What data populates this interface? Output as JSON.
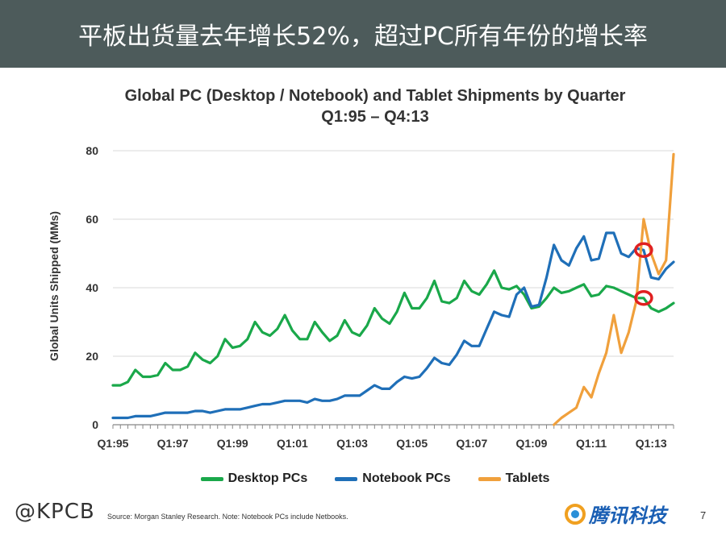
{
  "header": {
    "title": "平板出货量去年增长52%，超过PC所有年份的增长率"
  },
  "chart_data": {
    "type": "line",
    "title": "Global PC (Desktop / Notebook) and Tablet Shipments by Quarter",
    "subtitle": "Q1:95 – Q4:13",
    "ylabel": "Global Units Shipped (MMs)",
    "xlabel": "",
    "ylim": [
      0,
      80
    ],
    "yticks": [
      0,
      20,
      40,
      60,
      80
    ],
    "xlim": [
      1995.0,
      2013.75
    ],
    "xticks": [
      {
        "label": "Q1:95",
        "value": 1995.0
      },
      {
        "label": "Q1:97",
        "value": 1997.0
      },
      {
        "label": "Q1:99",
        "value": 1999.0
      },
      {
        "label": "Q1:01",
        "value": 2001.0
      },
      {
        "label": "Q1:03",
        "value": 2003.0
      },
      {
        "label": "Q1:05",
        "value": 2005.0
      },
      {
        "label": "Q1:07",
        "value": 2007.0
      },
      {
        "label": "Q1:09",
        "value": 2009.0
      },
      {
        "label": "Q1:11",
        "value": 2011.0
      },
      {
        "label": "Q1:13",
        "value": 2013.0
      }
    ],
    "grid": true,
    "series": [
      {
        "name": "Desktop PCs",
        "color": "#1aa84a",
        "x": [
          1995.0,
          1995.25,
          1995.5,
          1995.75,
          1996.0,
          1996.25,
          1996.5,
          1996.75,
          1997.0,
          1997.25,
          1997.5,
          1997.75,
          1998.0,
          1998.25,
          1998.5,
          1998.75,
          1999.0,
          1999.25,
          1999.5,
          1999.75,
          2000.0,
          2000.25,
          2000.5,
          2000.75,
          2001.0,
          2001.25,
          2001.5,
          2001.75,
          2002.0,
          2002.25,
          2002.5,
          2002.75,
          2003.0,
          2003.25,
          2003.5,
          2003.75,
          2004.0,
          2004.25,
          2004.5,
          2004.75,
          2005.0,
          2005.25,
          2005.5,
          2005.75,
          2006.0,
          2006.25,
          2006.5,
          2006.75,
          2007.0,
          2007.25,
          2007.5,
          2007.75,
          2008.0,
          2008.25,
          2008.5,
          2008.75,
          2009.0,
          2009.25,
          2009.5,
          2009.75,
          2010.0,
          2010.25,
          2010.5,
          2010.75,
          2011.0,
          2011.25,
          2011.5,
          2011.75,
          2012.0,
          2012.25,
          2012.5,
          2012.75,
          2013.0,
          2013.25,
          2013.5,
          2013.75
        ],
        "y": [
          11.5,
          11.5,
          12.5,
          16,
          14,
          14,
          14.5,
          18,
          16,
          16,
          17,
          21,
          19,
          18,
          20,
          25,
          22.5,
          23,
          25,
          30,
          27,
          26,
          28,
          32,
          27.5,
          25,
          25,
          30,
          27,
          24.5,
          26,
          30.5,
          27,
          26,
          29,
          34,
          31,
          29.5,
          33,
          38.5,
          34,
          34,
          37,
          42,
          36,
          35.5,
          37,
          42,
          39,
          38,
          41,
          45,
          40,
          39.5,
          40.5,
          38,
          34,
          34.5,
          37,
          40,
          38.5,
          39,
          40,
          41,
          37.5,
          38,
          40.5,
          40,
          39,
          38,
          37,
          37,
          34,
          33,
          34,
          35.5
        ]
      },
      {
        "name": "Notebook PCs",
        "color": "#1f6fb8",
        "x": [
          1995.0,
          1995.25,
          1995.5,
          1995.75,
          1996.0,
          1996.25,
          1996.5,
          1996.75,
          1997.0,
          1997.25,
          1997.5,
          1997.75,
          1998.0,
          1998.25,
          1998.5,
          1998.75,
          1999.0,
          1999.25,
          1999.5,
          1999.75,
          2000.0,
          2000.25,
          2000.5,
          2000.75,
          2001.0,
          2001.25,
          2001.5,
          2001.75,
          2002.0,
          2002.25,
          2002.5,
          2002.75,
          2003.0,
          2003.25,
          2003.5,
          2003.75,
          2004.0,
          2004.25,
          2004.5,
          2004.75,
          2005.0,
          2005.25,
          2005.5,
          2005.75,
          2006.0,
          2006.25,
          2006.5,
          2006.75,
          2007.0,
          2007.25,
          2007.5,
          2007.75,
          2008.0,
          2008.25,
          2008.5,
          2008.75,
          2009.0,
          2009.25,
          2009.5,
          2009.75,
          2010.0,
          2010.25,
          2010.5,
          2010.75,
          2011.0,
          2011.25,
          2011.5,
          2011.75,
          2012.0,
          2012.25,
          2012.5,
          2012.75,
          2013.0,
          2013.25,
          2013.5,
          2013.75
        ],
        "y": [
          2,
          2,
          2,
          2.5,
          2.5,
          2.5,
          3,
          3.5,
          3.5,
          3.5,
          3.5,
          4,
          4,
          3.5,
          4,
          4.5,
          4.5,
          4.5,
          5,
          5.5,
          6,
          6,
          6.5,
          7,
          7,
          7,
          6.5,
          7.5,
          7,
          7,
          7.5,
          8.5,
          8.5,
          8.5,
          10,
          11.5,
          10.5,
          10.5,
          12.5,
          14,
          13.5,
          14,
          16.5,
          19.5,
          18,
          17.5,
          20.5,
          24.5,
          23,
          23,
          28,
          33,
          32,
          31.5,
          38,
          40,
          34.5,
          35,
          43,
          52.5,
          48,
          46.5,
          51.5,
          55,
          48,
          48.5,
          56,
          56,
          50,
          49,
          51.5,
          51,
          43,
          42.5,
          45.5,
          47.5
        ]
      },
      {
        "name": "Tablets",
        "color": "#f0a03c",
        "x": [
          2009.75,
          2010.0,
          2010.25,
          2010.5,
          2010.75,
          2011.0,
          2011.25,
          2011.5,
          2011.75,
          2012.0,
          2012.25,
          2012.5,
          2012.75,
          2013.0,
          2013.25,
          2013.5,
          2013.75
        ],
        "y": [
          0,
          2,
          3.5,
          5,
          11,
          8,
          15,
          21,
          32,
          21,
          27,
          36,
          60,
          50,
          44,
          48,
          79
        ]
      }
    ],
    "annotations": [
      {
        "type": "circle",
        "x": 2012.75,
        "y": 51,
        "color": "#e02020"
      },
      {
        "type": "circle",
        "x": 2012.75,
        "y": 37,
        "color": "#e02020"
      }
    ],
    "legend_position": "bottom"
  },
  "footer": {
    "watermark": "@KPCB",
    "source": "Source: Morgan Stanley Research. Note: Notebook PCs include Netbooks.",
    "logo_text": "腾讯科技",
    "page_number": "7"
  }
}
